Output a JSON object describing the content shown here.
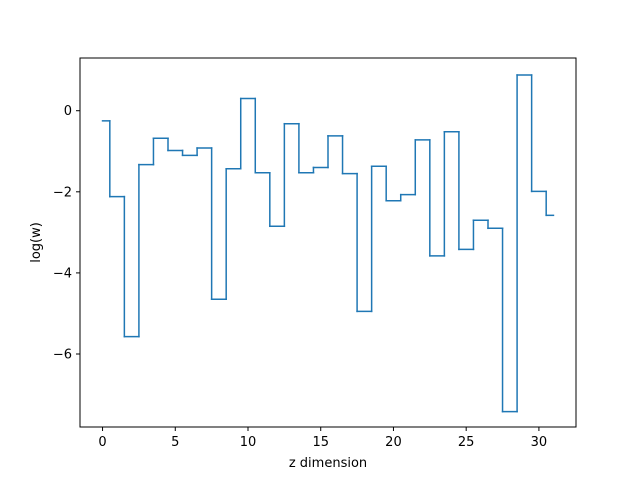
{
  "chart_data": {
    "type": "line",
    "step": "mid",
    "title": "",
    "xlabel": "z dimension",
    "ylabel": "log(w)",
    "xlim": [
      -1.55,
      32.55
    ],
    "ylim": [
      -7.8,
      1.3
    ],
    "xticks": [
      0,
      5,
      10,
      15,
      20,
      25,
      30
    ],
    "yticks": [
      -6,
      -4,
      -2,
      0
    ],
    "grid": false,
    "legend": "none",
    "line_color": "#1f77b4",
    "series": [
      {
        "x": [
          0,
          1,
          2,
          3,
          4,
          5,
          6,
          7,
          8,
          9,
          10,
          11,
          12,
          13,
          14,
          15,
          16,
          17,
          18,
          19,
          20,
          21,
          22,
          23,
          24,
          25,
          26,
          27,
          28,
          29,
          30,
          31
        ],
        "values": [
          -0.25,
          -2.12,
          -5.57,
          -1.33,
          -0.68,
          -0.98,
          -1.1,
          -0.92,
          -4.65,
          -1.43,
          0.3,
          -1.53,
          -2.85,
          -0.32,
          -1.53,
          -1.4,
          -0.62,
          -1.55,
          -4.95,
          -1.37,
          -2.22,
          -2.07,
          -0.72,
          -3.58,
          -0.52,
          -3.42,
          -2.7,
          -2.9,
          -7.42,
          0.88,
          -1.99,
          -2.58
        ]
      }
    ]
  }
}
